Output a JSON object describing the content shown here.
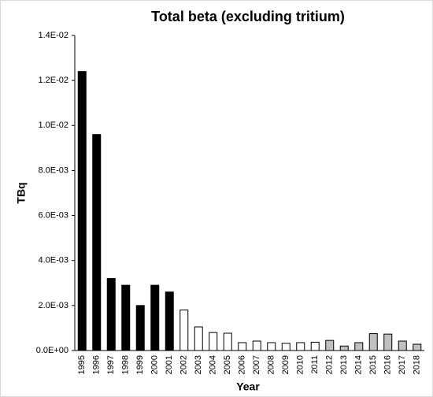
{
  "chart_data": {
    "type": "bar",
    "title": "Total beta (excluding tritium)",
    "x_label": "Year",
    "y_label": "TBq",
    "categories": [
      "1995",
      "1996",
      "1997",
      "1998",
      "1999",
      "2000",
      "2001",
      "2002",
      "2003",
      "2004",
      "2005",
      "2006",
      "2007",
      "2008",
      "2009",
      "2010",
      "2011",
      "2012",
      "2013",
      "2014",
      "2015",
      "2016",
      "2017",
      "2018"
    ],
    "values": [
      0.0124,
      0.0096,
      0.0032,
      0.0029,
      0.002,
      0.0029,
      0.0026,
      0.0018,
      0.00105,
      0.0008,
      0.00077,
      0.00035,
      0.00042,
      0.00035,
      0.00032,
      0.00035,
      0.00037,
      0.00045,
      0.0002,
      0.00035,
      0.00075,
      0.00073,
      0.00042,
      0.00028
    ],
    "colors": [
      "#000000",
      "#000000",
      "#000000",
      "#000000",
      "#000000",
      "#000000",
      "#000000",
      "#ffffff",
      "#ffffff",
      "#ffffff",
      "#ffffff",
      "#ffffff",
      "#ffffff",
      "#ffffff",
      "#ffffff",
      "#ffffff",
      "#ffffff",
      "#c0c0c0",
      "#c0c0c0",
      "#c0c0c0",
      "#c0c0c0",
      "#c0c0c0",
      "#c0c0c0",
      "#c0c0c0"
    ],
    "ylim": [
      0,
      0.014
    ],
    "yticks": [
      {
        "value": 0,
        "label": "0.0E+00"
      },
      {
        "value": 0.002,
        "label": "2.0E-03"
      },
      {
        "value": 0.004,
        "label": "4.0E-03"
      },
      {
        "value": 0.006,
        "label": "6.0E-03"
      },
      {
        "value": 0.008,
        "label": "8.0E-03"
      },
      {
        "value": 0.01,
        "label": "1.0E-02"
      },
      {
        "value": 0.012,
        "label": "1.2E-02"
      },
      {
        "value": 0.014,
        "label": "1.4E-02"
      }
    ],
    "grid": false
  }
}
